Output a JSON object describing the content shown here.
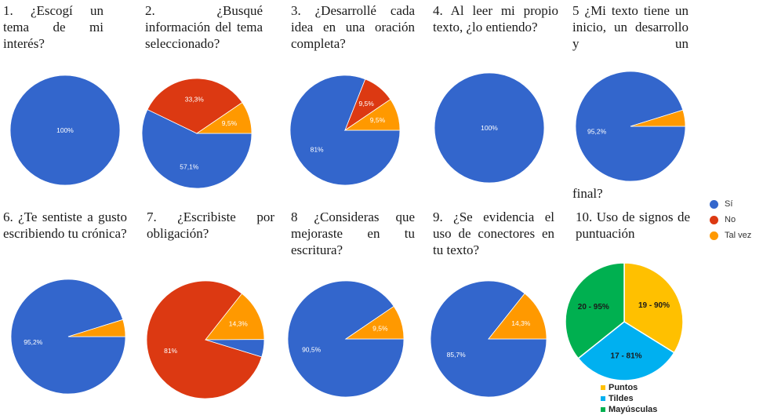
{
  "questions": [
    "1. ¿Escogí un tema de mi interés?",
    "2. ¿Busqué información del tema seleccionado?",
    "3. ¿Desarrollé cada idea en una oración completa?",
    "4. Al leer mi propio texto, ¿lo entiendo?",
    "5 ¿Mi texto tiene un inicio, un desarrollo y un",
    "6. ¿Te sentiste a gusto escribiendo tu crónica?",
    "7. ¿Escribiste por obligación?",
    "8 ¿Consideras que mejoraste en tu escritura?",
    "9. ¿Se evidencia el uso de conectores en tu texto?",
    "10. Uso de signos de puntuación"
  ],
  "question5_end": "final?",
  "legend": [
    {
      "label": "Sí",
      "color": "#3366cc"
    },
    {
      "label": "No",
      "color": "#dc3912"
    },
    {
      "label": "Tal vez",
      "color": "#ff9900"
    }
  ],
  "legend2": [
    {
      "label": "Puntos",
      "color": "#ffc000"
    },
    {
      "label": "Tildes",
      "color": "#00b0f0"
    },
    {
      "label": "Mayúsculas",
      "color": "#00b050"
    }
  ],
  "chart_data": [
    {
      "type": "pie",
      "title": "1. ¿Escogí un tema de mi interés?",
      "categories": [
        "Sí"
      ],
      "values": [
        100
      ],
      "labels": [
        "100%"
      ]
    },
    {
      "type": "pie",
      "title": "2. ¿Busqué información del tema seleccionado?",
      "categories": [
        "Sí",
        "No",
        "Tal vez"
      ],
      "values": [
        57.1,
        33.3,
        9.5
      ],
      "labels": [
        "57,1%",
        "33,3%",
        "9,5%"
      ]
    },
    {
      "type": "pie",
      "title": "3. ¿Desarrollé cada idea en una oración completa?",
      "categories": [
        "Sí",
        "No",
        "Tal vez"
      ],
      "values": [
        81,
        9.5,
        9.5
      ],
      "labels": [
        "81%",
        "9,5%",
        "9,5%"
      ]
    },
    {
      "type": "pie",
      "title": "4. Al leer mi propio texto, ¿lo entiendo?",
      "categories": [
        "Sí"
      ],
      "values": [
        100
      ],
      "labels": [
        "100%"
      ]
    },
    {
      "type": "pie",
      "title": "5 ¿Mi texto tiene un inicio, un desarrollo y un final?",
      "categories": [
        "Sí",
        "Tal vez"
      ],
      "values": [
        95.2,
        4.8
      ],
      "labels": [
        "95,2%",
        ""
      ]
    },
    {
      "type": "pie",
      "title": "6. ¿Te sentiste a gusto escribiendo tu crónica?",
      "categories": [
        "Sí",
        "Tal vez"
      ],
      "values": [
        95.2,
        4.8
      ],
      "labels": [
        "95,2%",
        ""
      ]
    },
    {
      "type": "pie",
      "title": "7. ¿Escribiste por obligación?",
      "categories": [
        "No",
        "Tal vez",
        "Sí"
      ],
      "values": [
        81,
        14.3,
        4.8
      ],
      "labels": [
        "81%",
        "14,3%",
        ""
      ]
    },
    {
      "type": "pie",
      "title": "8 ¿Consideras que mejoraste en tu escritura?",
      "categories": [
        "Sí",
        "Tal vez"
      ],
      "values": [
        90.5,
        9.5
      ],
      "labels": [
        "90,5%",
        "9,5%"
      ]
    },
    {
      "type": "pie",
      "title": "9. ¿Se evidencia el uso de conectores en tu texto?",
      "categories": [
        "Sí",
        "Tal vez"
      ],
      "values": [
        85.7,
        14.3
      ],
      "labels": [
        "85,7%",
        "14,3%"
      ]
    },
    {
      "type": "pie",
      "title": "10. Uso de signos de puntuación",
      "categories": [
        "Puntos",
        "Tildes",
        "Mayúsculas"
      ],
      "values": [
        90,
        81,
        95
      ],
      "labels": [
        "19 - 90%",
        "17 - 81%",
        "20 - 95%"
      ]
    }
  ]
}
